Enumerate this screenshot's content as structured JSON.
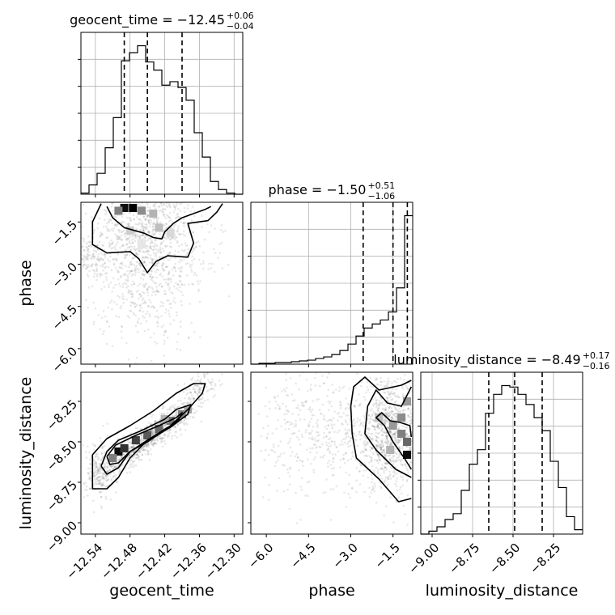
{
  "chart_data": {
    "type": "corner",
    "parameters": [
      "geocent_time",
      "phase",
      "luminosity_distance"
    ],
    "titles": [
      {
        "param": "geocent_time",
        "label": "geocent_time = −12.45",
        "plus": "+0.06",
        "minus": "−0.04"
      },
      {
        "param": "phase",
        "label": "phase = −1.50",
        "plus": "+0.51",
        "minus": "−1.06"
      },
      {
        "param": "luminosity_distance",
        "label": "luminosity_distance = −8.49",
        "plus": "+0.17",
        "minus": "−0.16"
      }
    ],
    "axes": {
      "geocent_time": {
        "range": [
          -12.565,
          -12.285
        ],
        "ticks": [
          -12.54,
          -12.48,
          -12.42,
          -12.36,
          -12.3
        ],
        "tick_labels": [
          "−12.54",
          "−12.48",
          "−12.42",
          "−12.36",
          "−12.30"
        ]
      },
      "phase": {
        "range": [
          -6.55,
          -0.8
        ],
        "ticks": [
          -6.0,
          -4.5,
          -3.0,
          -1.5
        ],
        "tick_labels": [
          "−6.0",
          "−4.5",
          "−3.0",
          "−1.5"
        ]
      },
      "luminosity_distance": {
        "range": [
          -9.07,
          -8.07
        ],
        "ticks": [
          -9.0,
          -8.75,
          -8.5,
          -8.25
        ],
        "tick_labels": [
          "−9.00",
          "−8.75",
          "−8.50",
          "−8.25"
        ]
      }
    },
    "histograms": {
      "geocent_time": {
        "bin_edges": [
          -12.565,
          -12.551,
          -12.537,
          -12.523,
          -12.509,
          -12.495,
          -12.481,
          -12.467,
          -12.453,
          -12.439,
          -12.425,
          -12.411,
          -12.397,
          -12.383,
          -12.369,
          -12.355,
          -12.341,
          -12.327,
          -12.313,
          -12.299,
          -12.285
        ],
        "counts": [
          1,
          8,
          18,
          40,
          66,
          115,
          122,
          128,
          114,
          107,
          94,
          97,
          92,
          81,
          53,
          32,
          11,
          4,
          1,
          0
        ],
        "quantiles": [
          -12.49,
          -12.45,
          -12.39
        ]
      },
      "phase": {
        "bin_edges": [
          -6.55,
          -6.2625,
          -5.975,
          -5.6875,
          -5.4,
          -5.1125,
          -4.825,
          -4.5375,
          -4.25,
          -3.9625,
          -3.675,
          -3.3875,
          -3.1,
          -2.8125,
          -2.525,
          -2.2375,
          -1.95,
          -1.6625,
          -1.375,
          -1.0875,
          -0.8
        ],
        "counts": [
          0,
          1,
          1,
          2,
          2,
          3,
          4,
          5,
          7,
          9,
          12,
          17,
          25,
          35,
          45,
          50,
          55,
          65,
          95,
          185
        ],
        "quantiles": [
          -2.56,
          -1.5,
          -0.99
        ]
      },
      "luminosity_distance": {
        "bin_edges": [
          -9.07,
          -9.02,
          -8.97,
          -8.92,
          -8.87,
          -8.82,
          -8.77,
          -8.72,
          -8.67,
          -8.62,
          -8.57,
          -8.52,
          -8.47,
          -8.42,
          -8.37,
          -8.32,
          -8.27,
          -8.22,
          -8.17,
          -8.12,
          -8.07
        ],
        "counts": [
          0,
          2,
          5,
          10,
          14,
          30,
          48,
          58,
          83,
          96,
          102,
          101,
          96,
          89,
          80,
          71,
          50,
          32,
          12,
          3
        ],
        "quantiles": [
          -8.65,
          -8.49,
          -8.32
        ]
      }
    },
    "scatter_2d": [
      {
        "x": "geocent_time",
        "y": "phase",
        "density_cells": [
          [
            -12.49,
            -1.0,
            0.95
          ],
          [
            -12.475,
            -1.0,
            1.0
          ],
          [
            -12.5,
            -1.1,
            0.5
          ],
          [
            -12.46,
            -1.1,
            0.45
          ],
          [
            -12.44,
            -1.2,
            0.3
          ],
          [
            -12.43,
            -1.7,
            0.25
          ],
          [
            -12.48,
            -1.8,
            0.2
          ],
          [
            -12.41,
            -1.9,
            0.15
          ],
          [
            -12.46,
            -2.3,
            0.1
          ]
        ],
        "contours": [
          [
            [
              -12.52,
              -0.95
            ],
            [
              -12.51,
              -1.35
            ],
            [
              -12.49,
              -1.7
            ],
            [
              -12.455,
              -1.9
            ],
            [
              -12.44,
              -2.05
            ],
            [
              -12.425,
              -2.1
            ],
            [
              -12.42,
              -1.85
            ],
            [
              -12.405,
              -1.55
            ],
            [
              -12.39,
              -1.35
            ],
            [
              -12.37,
              -1.2
            ],
            [
              -12.35,
              -1.05
            ],
            [
              -12.34,
              -0.95
            ]
          ],
          [
            [
              -12.53,
              -0.85
            ],
            [
              -12.545,
              -1.5
            ],
            [
              -12.545,
              -2.3
            ],
            [
              -12.52,
              -2.6
            ],
            [
              -12.48,
              -2.55
            ],
            [
              -12.465,
              -2.8
            ],
            [
              -12.45,
              -3.3
            ],
            [
              -12.435,
              -2.9
            ],
            [
              -12.415,
              -2.7
            ],
            [
              -12.38,
              -2.75
            ],
            [
              -12.37,
              -2.25
            ],
            [
              -12.38,
              -1.55
            ],
            [
              -12.345,
              -1.45
            ],
            [
              -12.33,
              -1.15
            ],
            [
              -12.32,
              -0.85
            ]
          ]
        ],
        "scatter_clouds": [
          {
            "center": [
              -12.45,
              -1.7
            ],
            "spread": [
              0.045,
              0.8
            ],
            "n": 700
          },
          {
            "center": [
              -12.47,
              -3.4
            ],
            "spread": [
              0.035,
              0.9
            ],
            "n": 260
          },
          {
            "center": [
              -12.55,
              -2.8
            ],
            "spread": [
              0.02,
              0.35
            ],
            "n": 140
          },
          {
            "center": [
              -12.44,
              -4.6
            ],
            "spread": [
              0.05,
              0.9
            ],
            "n": 120
          },
          {
            "center": [
              -12.4,
              -3.0
            ],
            "spread": [
              0.04,
              0.9
            ],
            "n": 150
          }
        ]
      },
      {
        "x": "geocent_time",
        "y": "luminosity_distance",
        "density_cells": [
          [
            -12.5,
            -8.56,
            0.95
          ],
          [
            -12.49,
            -8.54,
            0.8
          ],
          [
            -12.47,
            -8.49,
            0.75
          ],
          [
            -12.45,
            -8.46,
            0.65
          ],
          [
            -12.43,
            -8.42,
            0.6
          ],
          [
            -12.41,
            -8.37,
            0.55
          ],
          [
            -12.39,
            -8.33,
            0.5
          ],
          [
            -12.51,
            -8.6,
            0.5
          ],
          [
            -12.38,
            -8.3,
            0.35
          ],
          [
            -12.42,
            -8.36,
            0.3
          ]
        ],
        "contours": [
          [
            [
              -12.52,
              -8.59
            ],
            [
              -12.505,
              -8.52
            ],
            [
              -12.47,
              -8.46
            ],
            [
              -12.43,
              -8.4
            ],
            [
              -12.4,
              -8.35
            ],
            [
              -12.39,
              -8.32
            ],
            [
              -12.395,
              -8.36
            ],
            [
              -12.42,
              -8.43
            ],
            [
              -12.45,
              -8.5
            ],
            [
              -12.48,
              -8.56
            ],
            [
              -12.5,
              -8.63
            ],
            [
              -12.515,
              -8.64
            ],
            [
              -12.52,
              -8.59
            ]
          ],
          [
            [
              -12.53,
              -8.65
            ],
            [
              -12.52,
              -8.56
            ],
            [
              -12.5,
              -8.49
            ],
            [
              -12.46,
              -8.43
            ],
            [
              -12.42,
              -8.36
            ],
            [
              -12.4,
              -8.3
            ],
            [
              -12.375,
              -8.27
            ],
            [
              -12.38,
              -8.33
            ],
            [
              -12.41,
              -8.41
            ],
            [
              -12.45,
              -8.49
            ],
            [
              -12.48,
              -8.56
            ],
            [
              -12.5,
              -8.66
            ],
            [
              -12.52,
              -8.7
            ],
            [
              -12.53,
              -8.65
            ]
          ],
          [
            [
              -12.545,
              -8.73
            ],
            [
              -12.545,
              -8.58
            ],
            [
              -12.52,
              -8.48
            ],
            [
              -12.48,
              -8.4
            ],
            [
              -12.44,
              -8.31
            ],
            [
              -12.4,
              -8.2
            ],
            [
              -12.37,
              -8.14
            ],
            [
              -12.35,
              -8.14
            ],
            [
              -12.355,
              -8.2
            ],
            [
              -12.38,
              -8.3
            ],
            [
              -12.41,
              -8.4
            ],
            [
              -12.45,
              -8.49
            ],
            [
              -12.48,
              -8.6
            ],
            [
              -12.5,
              -8.72
            ],
            [
              -12.52,
              -8.79
            ],
            [
              -12.545,
              -8.79
            ],
            [
              -12.545,
              -8.73
            ]
          ]
        ],
        "scatter_clouds": [
          {
            "center": [
              -12.45,
              -8.48
            ],
            "spread": [
              0.045,
              0.14
            ],
            "n": 900,
            "correlated": true
          },
          {
            "center": [
              -12.535,
              -8.68
            ],
            "spread": [
              0.012,
              0.1
            ],
            "n": 160
          },
          {
            "center": [
              -12.36,
              -8.16
            ],
            "spread": [
              0.012,
              0.05
            ],
            "n": 90
          }
        ]
      },
      {
        "x": "phase",
        "y": "luminosity_distance",
        "density_cells": [
          [
            -1.0,
            -8.58,
            0.95
          ],
          [
            -1.0,
            -8.5,
            0.6
          ],
          [
            -1.2,
            -8.45,
            0.5
          ],
          [
            -1.5,
            -8.4,
            0.4
          ],
          [
            -1.2,
            -8.35,
            0.45
          ],
          [
            -1.0,
            -8.25,
            0.4
          ],
          [
            -1.6,
            -8.55,
            0.3
          ],
          [
            -2.0,
            -8.35,
            0.25
          ]
        ],
        "contours": [
          [
            [
              -0.85,
              -8.67
            ],
            [
              -1.1,
              -8.6
            ],
            [
              -1.5,
              -8.5
            ],
            [
              -1.8,
              -8.4
            ],
            [
              -2.1,
              -8.35
            ],
            [
              -1.9,
              -8.32
            ],
            [
              -1.6,
              -8.37
            ],
            [
              -1.25,
              -8.38
            ],
            [
              -0.9,
              -8.4
            ],
            [
              -0.85,
              -8.47
            ]
          ],
          [
            [
              -0.85,
              -8.72
            ],
            [
              -1.4,
              -8.67
            ],
            [
              -2.1,
              -8.55
            ],
            [
              -2.5,
              -8.45
            ],
            [
              -2.4,
              -8.28
            ],
            [
              -2.1,
              -8.18
            ],
            [
              -1.7,
              -8.26
            ],
            [
              -1.2,
              -8.28
            ],
            [
              -0.85,
              -8.16
            ]
          ],
          [
            [
              -0.85,
              -8.85
            ],
            [
              -1.3,
              -8.87
            ],
            [
              -2.0,
              -8.73
            ],
            [
              -2.8,
              -8.6
            ],
            [
              -2.95,
              -8.45
            ],
            [
              -3.0,
              -8.28
            ],
            [
              -2.9,
              -8.16
            ],
            [
              -2.5,
              -8.1
            ],
            [
              -2.0,
              -8.18
            ],
            [
              -1.2,
              -8.15
            ],
            [
              -0.85,
              -8.12
            ]
          ]
        ],
        "scatter_clouds": [
          {
            "center": [
              -1.6,
              -8.45
            ],
            "spread": [
              0.6,
              0.16
            ],
            "n": 900
          },
          {
            "center": [
              -3.5,
              -8.45
            ],
            "spread": [
              1.0,
              0.2
            ],
            "n": 350
          },
          {
            "center": [
              -5.2,
              -8.45
            ],
            "spread": [
              0.7,
              0.2
            ],
            "n": 120
          }
        ]
      }
    ],
    "grid": true
  }
}
